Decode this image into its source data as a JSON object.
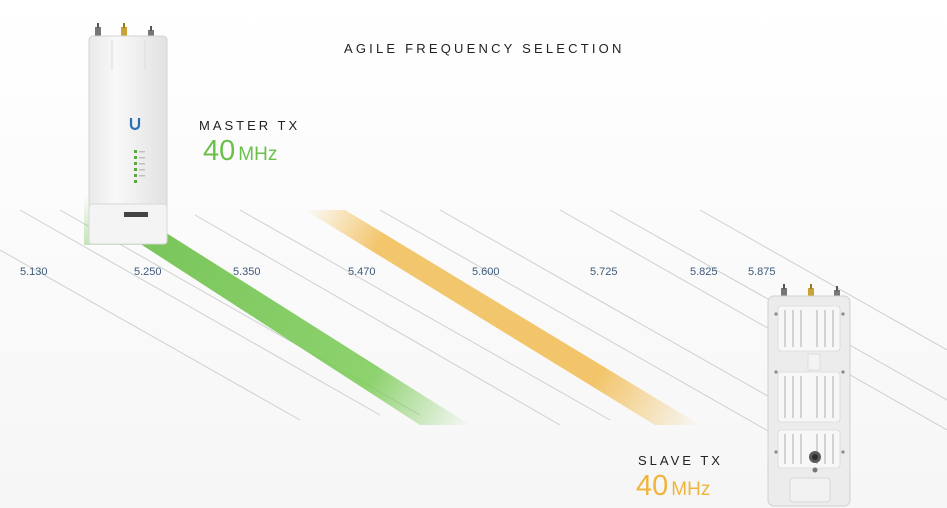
{
  "title": "AGILE FREQUENCY SELECTION",
  "colors": {
    "master": "#6cc04a",
    "slave": "#f0b43c",
    "tick_text": "#3c5a7a"
  },
  "master": {
    "label": "MASTER TX",
    "value": "40",
    "unit": "MHz"
  },
  "slave": {
    "label": "SLAVE TX",
    "value": "40",
    "unit": "MHz"
  },
  "frequencies": [
    "5.130",
    "5.250",
    "5.350",
    "5.470",
    "5.600",
    "5.725",
    "5.825",
    "5.875"
  ],
  "icons": [
    "master-radio-device-icon",
    "slave-radio-device-icon"
  ]
}
